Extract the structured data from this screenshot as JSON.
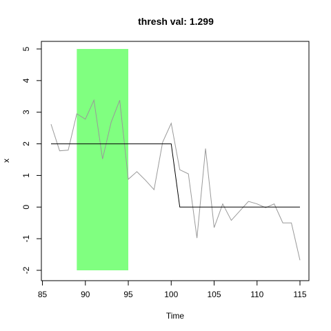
{
  "chart_data": {
    "type": "line",
    "title": "thresh val: 1.299",
    "xlabel": "Time",
    "ylabel": "x",
    "xlim": [
      86,
      115
    ],
    "ylim": [
      -2,
      5
    ],
    "x_ticks": [
      85,
      90,
      95,
      100,
      105,
      110,
      115
    ],
    "y_ticks": [
      -2,
      -1,
      0,
      1,
      2,
      3,
      4,
      5
    ],
    "grid": false,
    "highlight_region": {
      "x_start": 89,
      "x_end": 95,
      "y_start": -2,
      "y_end": 5,
      "color": "#80ff80"
    },
    "series": [
      {
        "color": "#999999",
        "x": [
          86,
          87,
          88,
          89,
          90,
          91,
          92,
          93,
          94,
          95,
          96,
          97,
          98,
          99,
          100,
          101,
          102,
          103,
          104,
          105,
          106,
          107,
          108,
          109,
          110,
          111,
          112,
          113,
          114,
          115
        ],
        "values": [
          2.62,
          1.78,
          1.8,
          2.95,
          2.78,
          3.38,
          1.52,
          2.68,
          3.38,
          0.88,
          1.12,
          0.85,
          0.55,
          2.05,
          2.65,
          1.18,
          1.05,
          -0.98,
          1.85,
          -0.65,
          0.1,
          -0.42,
          -0.12,
          0.18,
          0.1,
          -0.02,
          0.1,
          -0.5,
          -0.5,
          -1.68
        ]
      },
      {
        "color": "#000000",
        "x": [
          86,
          100,
          101,
          115
        ],
        "values": [
          2,
          2,
          0,
          0
        ]
      }
    ]
  }
}
